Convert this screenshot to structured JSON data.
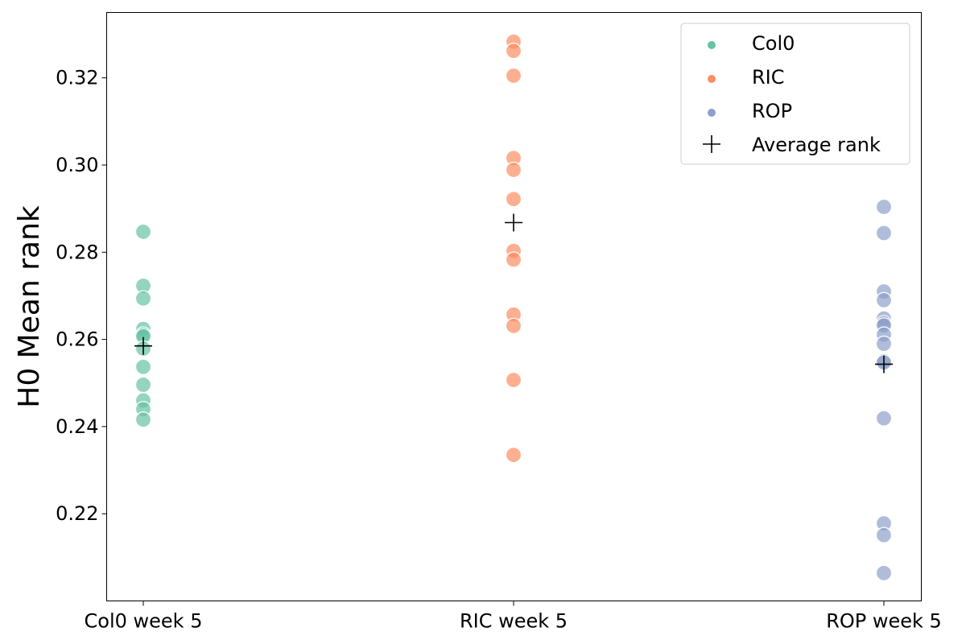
{
  "chart_data": {
    "type": "scatter",
    "title": "",
    "xlabel": "",
    "ylabel": "H0 Mean rank",
    "categories": [
      "Col0 week 5",
      "RIC week 5",
      "ROP week 5"
    ],
    "ylim": [
      0.2,
      0.335
    ],
    "yticks": [
      0.22,
      0.24,
      0.26,
      0.28,
      0.3,
      0.32
    ],
    "ytick_labels": [
      "0.22",
      "0.24",
      "0.26",
      "0.28",
      "0.30",
      "0.32"
    ],
    "grid": false,
    "legend_position": "top-right",
    "series": [
      {
        "name": "Col0",
        "color": "#66c2a5",
        "category": "Col0 week 5",
        "values": [
          0.2847,
          0.2723,
          0.2694,
          0.2624,
          0.2611,
          0.2607,
          0.2579,
          0.2537,
          0.2496,
          0.246,
          0.244,
          0.2416
        ]
      },
      {
        "name": "RIC",
        "color": "#fc8d62",
        "category": "RIC week 5",
        "values": [
          0.3283,
          0.3262,
          0.3205,
          0.3016,
          0.2989,
          0.2922,
          0.2803,
          0.2783,
          0.2657,
          0.2631,
          0.2507,
          0.2335
        ]
      },
      {
        "name": "ROP",
        "color": "#8da0cb",
        "category": "ROP week 5",
        "values": [
          0.2904,
          0.2844,
          0.271,
          0.269,
          0.2648,
          0.2637,
          0.2632,
          0.2611,
          0.259,
          0.255,
          0.2547,
          0.2419,
          0.2178,
          0.2151,
          0.2064
        ]
      }
    ],
    "average_rank": {
      "name": "Average rank",
      "color": "#000000",
      "marker": "plus",
      "values": [
        0.2585,
        0.2868,
        0.2543
      ]
    }
  }
}
